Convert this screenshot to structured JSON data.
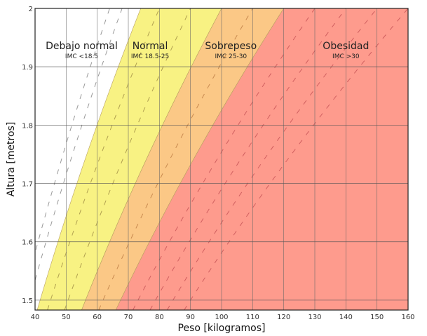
{
  "chart_data": {
    "type": "area",
    "title": "",
    "xlabel": "Peso [kilogramos]",
    "ylabel": "Altura [metros]",
    "xlim": [
      40,
      160
    ],
    "ylim": [
      1.483,
      2.0
    ],
    "xticks": [
      "40",
      "50",
      "60",
      "70",
      "80",
      "90",
      "100",
      "110",
      "120",
      "130",
      "140",
      "150",
      "160"
    ],
    "yticks": [
      "1.5",
      "1.6",
      "1.7",
      "1.8",
      "1.9",
      "2"
    ],
    "grid": true,
    "regions": [
      {
        "name": "Debajo normal",
        "sub": "IMC <18.5",
        "bmi_min": 0,
        "bmi_max": 18.5,
        "color": "#ffffff",
        "label_w": 55,
        "label_h": 1.93
      },
      {
        "name": "Normal",
        "sub": "IMC 18.5-25",
        "bmi_min": 18.5,
        "bmi_max": 25,
        "color": "#f8f283",
        "label_w": 77,
        "label_h": 1.93
      },
      {
        "name": "Sobrepeso",
        "sub": "IMC 25-30",
        "bmi_min": 25,
        "bmi_max": 30,
        "color": "#fbc886",
        "label_w": 103,
        "label_h": 1.93
      },
      {
        "name": "Obesidad",
        "sub": "IMC >30",
        "bmi_min": 30,
        "bmi_max": 100,
        "color": "#fe9b8d",
        "label_w": 140,
        "label_h": 1.93
      }
    ],
    "dashed_bmi_lines": [
      16,
      17,
      20,
      22.5,
      27.5,
      32.5,
      35,
      37.5,
      40
    ]
  }
}
